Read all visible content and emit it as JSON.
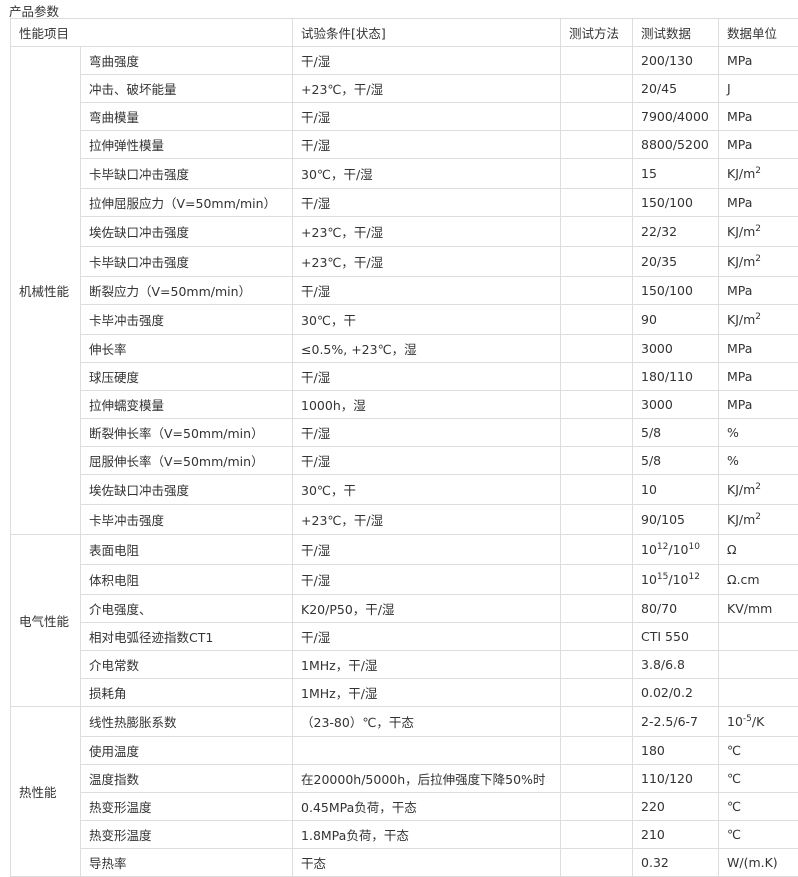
{
  "title": "产品参数",
  "headers": {
    "item": "性能项目",
    "cond": "试验条件[状态]",
    "method": "测试方法",
    "data": "测试数据",
    "unit": "数据单位"
  },
  "groups": [
    {
      "name": "机械性能",
      "rows": [
        {
          "item": "弯曲强度",
          "cond": "干/湿",
          "method": "",
          "data": "200/130",
          "unit": "MPa"
        },
        {
          "item": "冲击、破坏能量",
          "cond": "+23℃，干/湿",
          "method": "",
          "data": "20/45",
          "unit": "J"
        },
        {
          "item": "弯曲模量",
          "cond": "干/湿",
          "method": "",
          "data": "7900/4000",
          "unit": "MPa"
        },
        {
          "item": "拉伸弹性模量",
          "cond": "干/湿",
          "method": "",
          "data": "8800/5200",
          "unit": "MPa"
        },
        {
          "item": "卡毕缺口冲击强度",
          "cond": "30℃，干/湿",
          "method": "",
          "data": "15",
          "unit": "KJ/m<sup>2</sup>"
        },
        {
          "item": "拉伸屈服应力（V=50mm/min）",
          "cond": "干/湿",
          "method": "",
          "data": "150/100",
          "unit": "MPa"
        },
        {
          "item": "埃佐缺口冲击强度",
          "cond": "+23℃，干/湿",
          "method": "",
          "data": "22/32",
          "unit": "KJ/m<sup>2</sup>"
        },
        {
          "item": "卡毕缺口冲击强度",
          "cond": "+23℃，干/湿",
          "method": "",
          "data": "20/35",
          "unit": "KJ/m<sup>2</sup>"
        },
        {
          "item": "断裂应力（V=50mm/min）",
          "cond": "干/湿",
          "method": "",
          "data": "150/100",
          "unit": "MPa"
        },
        {
          "item": "卡毕冲击强度",
          "cond": "30℃，干",
          "method": "",
          "data": "90",
          "unit": "KJ/m<sup>2</sup>"
        },
        {
          "item": "伸长率",
          "cond": "≤0.5%, +23℃，湿",
          "method": "",
          "data": "3000",
          "unit": "MPa"
        },
        {
          "item": "球压硬度",
          "cond": "干/湿",
          "method": "",
          "data": "180/110",
          "unit": "MPa"
        },
        {
          "item": "拉伸蠕变模量",
          "cond": "1000h，湿",
          "method": "",
          "data": "3000",
          "unit": "MPa"
        },
        {
          "item": "断裂伸长率（V=50mm/min）",
          "cond": "干/湿",
          "method": "",
          "data": "5/8",
          "unit": "%"
        },
        {
          "item": "屈服伸长率（V=50mm/min）",
          "cond": "干/湿",
          "method": "",
          "data": "5/8",
          "unit": "%"
        },
        {
          "item": "埃佐缺口冲击强度",
          "cond": "30℃，干",
          "method": "",
          "data": "10",
          "unit": "KJ/m<sup>2</sup>"
        },
        {
          "item": "卡毕冲击强度",
          "cond": "+23℃，干/湿",
          "method": "",
          "data": "90/105",
          "unit": "KJ/m<sup>2</sup>"
        }
      ]
    },
    {
      "name": "电气性能",
      "rows": [
        {
          "item": "表面电阻",
          "cond": "干/湿",
          "method": "",
          "data": "10<sup>12</sup>/10<sup>10</sup>",
          "unit": "Ω"
        },
        {
          "item": "体积电阻",
          "cond": "干/湿",
          "method": "",
          "data": "10<sup>15</sup>/10<sup>12</sup>",
          "unit": "Ω.cm"
        },
        {
          "item": "介电强度、",
          "cond": "K20/P50，干/湿",
          "method": "",
          "data": "80/70",
          "unit": "KV/mm"
        },
        {
          "item": "相对电弧径迹指数CT1",
          "cond": "干/湿",
          "method": "",
          "data": "CTI 550",
          "unit": ""
        },
        {
          "item": "介电常数",
          "cond": "1MHz，干/湿",
          "method": "",
          "data": "3.8/6.8",
          "unit": ""
        },
        {
          "item": "损耗角",
          "cond": "1MHz，干/湿",
          "method": "",
          "data": "0.02/0.2",
          "unit": ""
        }
      ]
    },
    {
      "name": "热性能",
      "rows": [
        {
          "item": "线性热膨胀系数",
          "cond": "（23-80）℃，干态",
          "method": "",
          "data": "2-2.5/6-7",
          "unit": "10<sup>-5</sup>/K"
        },
        {
          "item": "使用温度",
          "cond": "",
          "method": "",
          "data": "180",
          "unit": "℃"
        },
        {
          "item": "温度指数",
          "cond": "在20000h/5000h，后拉伸强度下降50%时",
          "method": "",
          "data": "110/120",
          "unit": "℃"
        },
        {
          "item": "热变形温度",
          "cond": "0.45MPa负荷，干态",
          "method": "",
          "data": "220",
          "unit": "℃"
        },
        {
          "item": "热变形温度",
          "cond": "1.8MPa负荷，干态",
          "method": "",
          "data": "210",
          "unit": "℃"
        },
        {
          "item": "导热率",
          "cond": "干态",
          "method": "",
          "data": "0.32",
          "unit": "W/(m.K)"
        }
      ]
    }
  ]
}
